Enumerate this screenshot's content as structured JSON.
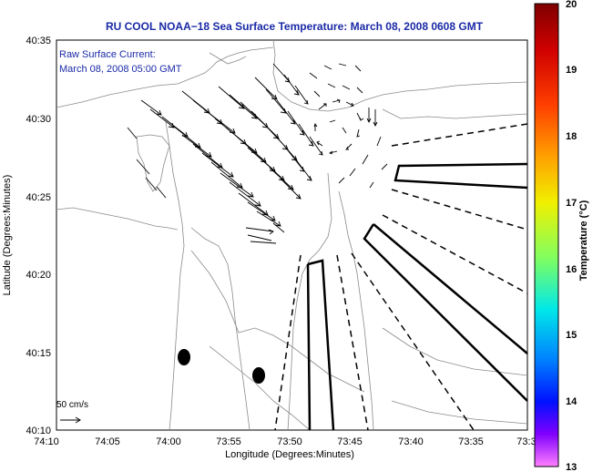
{
  "title": "RU COOL  NOAA−18  Sea Surface Temperature:  March 08, 2008 0608 GMT",
  "legend": {
    "line1": "Raw Surface Current:",
    "line2": "March 08, 2008 05:00 GMT"
  },
  "map": {
    "xlabel": "Longitude (Degrees:Minutes)",
    "ylabel": "Latitude (Degrees:Minutes)",
    "x_ticks": [
      "74:10",
      "74:05",
      "74:00",
      "73:55",
      "73:50",
      "73:45",
      "73:40",
      "73:35",
      "73:3"
    ],
    "y_ticks": [
      "40:35",
      "40:30",
      "40:25",
      "40:20",
      "40:15",
      "40:10"
    ],
    "scale_arrow_label": "50 cm/s"
  },
  "colorbar": {
    "label": "Temperature (°C)",
    "ticks": [
      "20",
      "19",
      "18",
      "17",
      "16",
      "15",
      "14",
      "13"
    ],
    "range": [
      13,
      20
    ]
  },
  "colors": {
    "title": "#1a2aa6",
    "land": "#ffffff",
    "contour": "#8a8a8a",
    "vectors": "#000000"
  }
}
